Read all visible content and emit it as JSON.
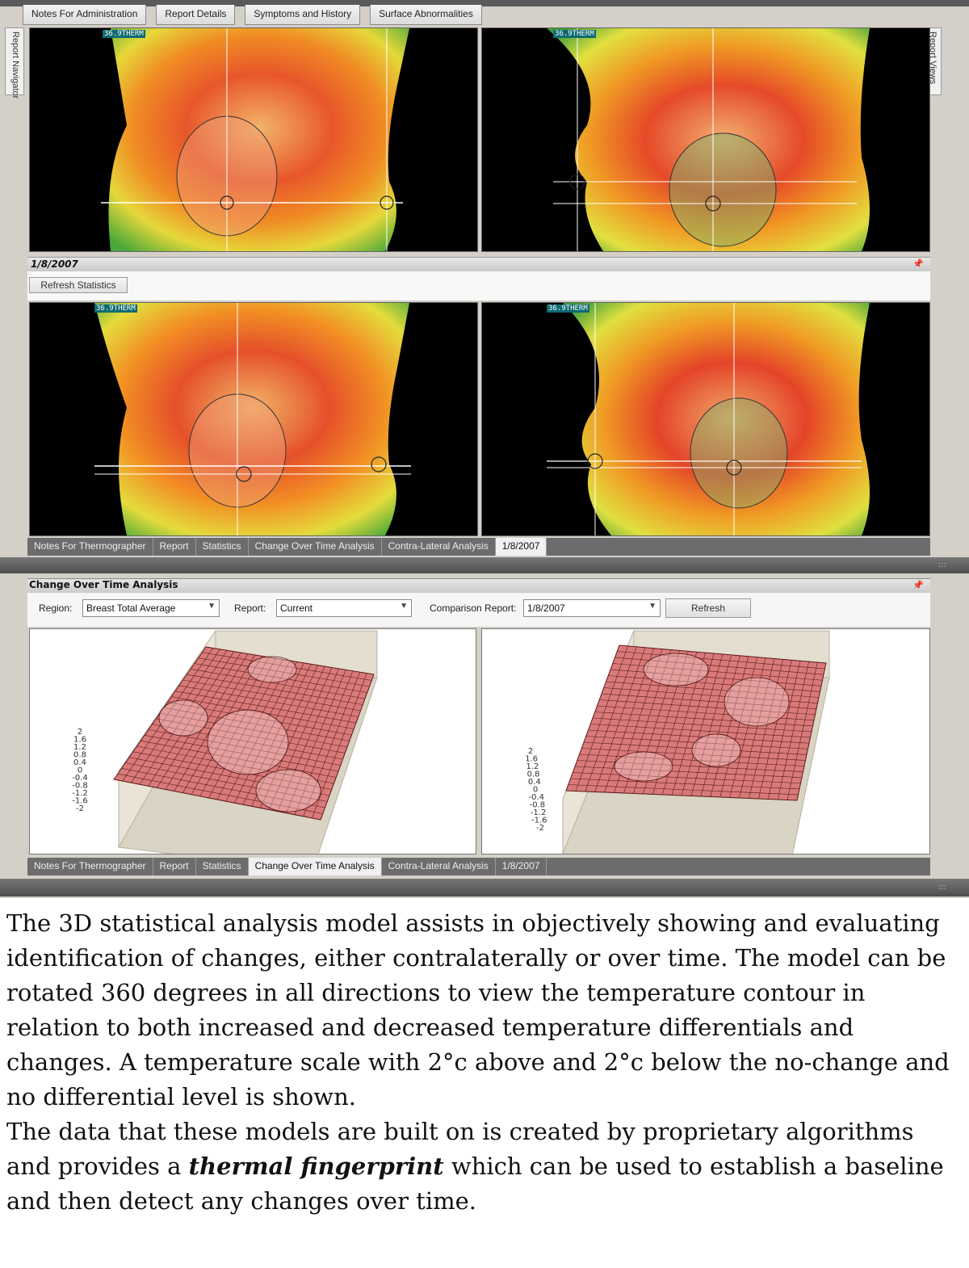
{
  "top_tabs": [
    "Notes For Administration",
    "Report Details",
    "Symptoms and History",
    "Surface Abnormalities"
  ],
  "side_left_label": "Report Navigator",
  "side_right_label": "Report Views",
  "therm_tag": "36.9THERM",
  "date_header": "1/8/2007",
  "refresh_statistics": "Refresh Statistics",
  "bottom_tabs": [
    "Notes For Thermographer",
    "Report",
    "Statistics",
    "Change Over Time Analysis",
    "Contra-Lateral Analysis",
    "1/8/2007"
  ],
  "change_over_time": {
    "title": "Change Over Time Analysis",
    "region_label": "Region:",
    "region_value": "Breast Total Average",
    "report_label": "Report:",
    "report_value": "Current",
    "comparison_label": "Comparison Report:",
    "comparison_value": "1/8/2007",
    "refresh": "Refresh"
  },
  "z_scale": [
    "2",
    "1.6",
    "1.2",
    "0.8",
    "0.4",
    "0",
    "-0.4",
    "-0.8",
    "-1.2",
    "-1.6",
    "-2"
  ],
  "caption": {
    "p1": "The 3D statistical analysis model assists in objectively showing and evaluating identification of changes, either contralaterally or over time. The model can be rotated 360 degrees in all directions to view the temperature contour in relation to both increased and decreased temperature differentials and changes. A temperature scale with 2°c above and 2°c below the no-change and no differential level is shown.",
    "p2_before": "The data that these models are built on is created by proprietary algorithms and provides a ",
    "p2_emph": "thermal fingerprint",
    "p2_after": " which can be used to establish a baseline and then detect any changes over time."
  },
  "colors": {
    "thermal_hot": "#d81e1e",
    "thermal_warm": "#f5a623",
    "thermal_mid": "#e8e23a",
    "thermal_cool": "#3fae3a",
    "mesh": "#d97a7a"
  }
}
